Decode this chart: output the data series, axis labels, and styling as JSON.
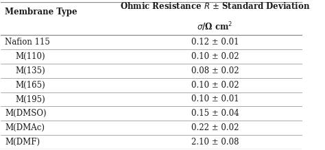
{
  "col1_header": "Membrane Type",
  "col2_header_line1": "Ohmic Resistance $\\it{R}$ $\\pm$ Standard Deviation",
  "col2_header_line2": "$\\sigma$/Ω cm$^2$",
  "rows": [
    [
      "Nafion 115",
      "0.12 ± 0.01"
    ],
    [
      "M(110)",
      "0.10 ± 0.02"
    ],
    [
      "M(135)",
      "0.08 ± 0.02"
    ],
    [
      "M(165)",
      "0.10 ± 0.02"
    ],
    [
      "M(195)",
      "0.10 ± 0.01"
    ],
    [
      "M(DMSO)",
      "0.15 ± 0.04"
    ],
    [
      "M(DMAc)",
      "0.22 ± 0.02"
    ],
    [
      "M(DMF)",
      "2.10 ± 0.08"
    ]
  ],
  "indented_rows": [
    1,
    2,
    3,
    4
  ],
  "bg_color": "#ffffff",
  "text_color": "#1a1a1a",
  "line_color": "#888888",
  "font_size": 8.5,
  "header_font_size": 8.5
}
